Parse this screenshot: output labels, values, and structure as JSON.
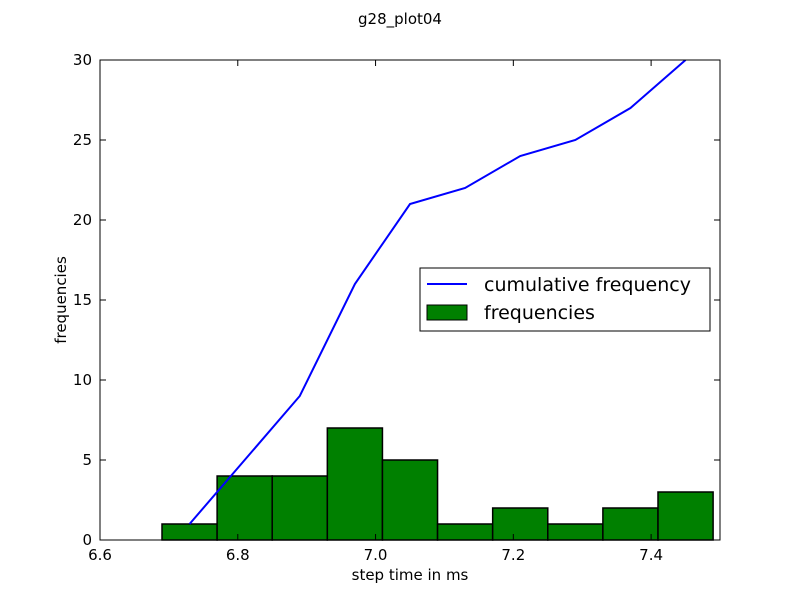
{
  "chart_data": {
    "type": "bar",
    "title": "g28_plot04",
    "xlabel": "step time in ms",
    "ylabel": "frequencies",
    "xlim": [
      6.6,
      7.5
    ],
    "ylim": [
      0,
      30
    ],
    "x_ticks": [
      6.6,
      6.8,
      7.0,
      7.2,
      7.4
    ],
    "x_tick_labels": [
      "6.6",
      "6.8",
      "7.0",
      "7.2",
      "7.4"
    ],
    "y_ticks": [
      0,
      5,
      10,
      15,
      20,
      25,
      30
    ],
    "y_tick_labels": [
      "0",
      "5",
      "10",
      "15",
      "20",
      "25",
      "30"
    ],
    "grid": false,
    "legend_position": "center-right",
    "histogram": {
      "name": "frequencies",
      "color": "#008000",
      "bin_edges": [
        6.69,
        6.77,
        6.85,
        6.93,
        7.01,
        7.09,
        7.17,
        7.25,
        7.33,
        7.41,
        7.49
      ],
      "values": [
        1,
        4,
        4,
        7,
        5,
        1,
        2,
        1,
        2,
        3
      ]
    },
    "cumulative": {
      "name": "cumulative frequency",
      "color": "#0000ff",
      "x": [
        6.73,
        6.81,
        6.89,
        6.97,
        7.05,
        7.13,
        7.21,
        7.29,
        7.37,
        7.45
      ],
      "values": [
        1,
        5,
        9,
        16,
        21,
        22,
        24,
        25,
        27,
        30
      ]
    }
  }
}
